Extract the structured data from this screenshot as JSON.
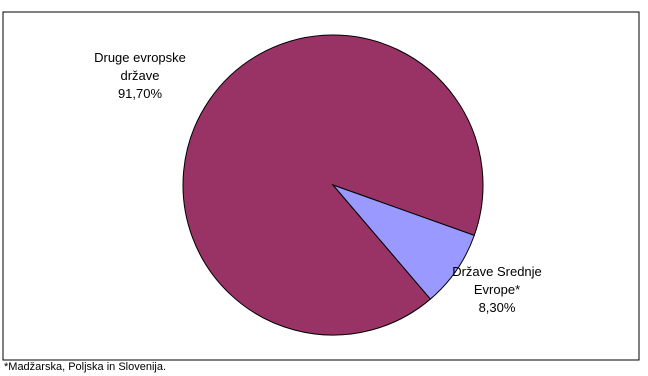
{
  "chart_data": {
    "type": "pie",
    "categories": [
      "Druge evropske države",
      "Države Srednje Evrope*"
    ],
    "values": [
      91.7,
      8.3
    ],
    "value_labels": [
      "91,70%",
      "8,30%"
    ],
    "colors": [
      "#993366",
      "#9999ff"
    ],
    "footnote": "*Madžarska, Poljska in Slovenija."
  }
}
